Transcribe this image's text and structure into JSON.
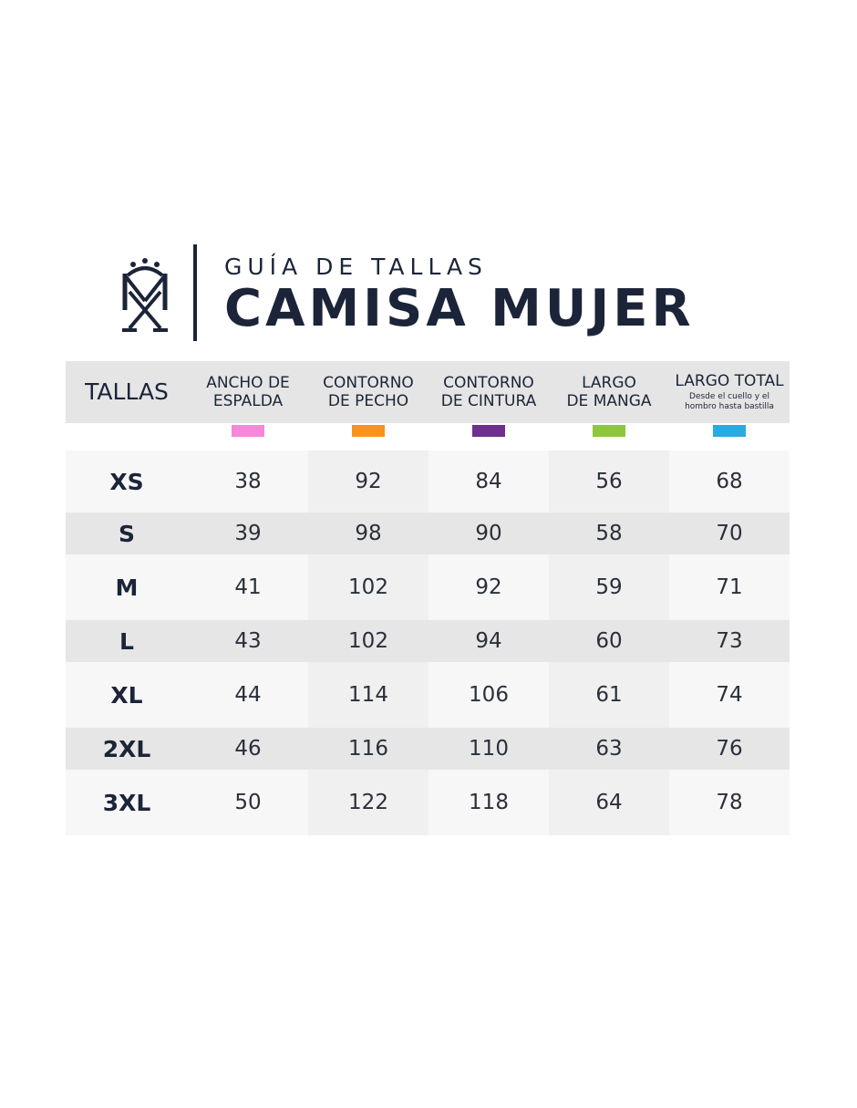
{
  "header": {
    "subtitle": "GUÍA DE TALLAS",
    "title": "CAMISA MUJER",
    "logo_icon": "monogram-crest-icon"
  },
  "table": {
    "columns": [
      {
        "line1": "TALLAS",
        "line2": "",
        "note1": "",
        "note2": "",
        "swatch": ""
      },
      {
        "line1": "ANCHO DE",
        "line2": "ESPALDA",
        "note1": "",
        "note2": "",
        "swatch": "#f389d8"
      },
      {
        "line1": "CONTORNO",
        "line2": "DE PECHO",
        "note1": "",
        "note2": "",
        "swatch": "#f7941d"
      },
      {
        "line1": "CONTORNO",
        "line2": "DE CINTURA",
        "note1": "",
        "note2": "",
        "swatch": "#6e2f8f"
      },
      {
        "line1": "LARGO",
        "line2": "DE MANGA",
        "note1": "",
        "note2": "",
        "swatch": "#8dc63f"
      },
      {
        "line1": "LARGO TOTAL",
        "line2": "",
        "note1": "Desde el cuello y el",
        "note2": "hombro hasta bastilla",
        "swatch": "#29abe2"
      }
    ],
    "rows": [
      [
        "XS",
        "38",
        "92",
        "84",
        "56",
        "68"
      ],
      [
        "S",
        "39",
        "98",
        "90",
        "58",
        "70"
      ],
      [
        "M",
        "41",
        "102",
        "92",
        "59",
        "71"
      ],
      [
        "L",
        "43",
        "102",
        "94",
        "60",
        "73"
      ],
      [
        "XL",
        "44",
        "114",
        "106",
        "61",
        "74"
      ],
      [
        "2XL",
        "46",
        "116",
        "110",
        "63",
        "76"
      ],
      [
        "3XL",
        "50",
        "122",
        "118",
        "64",
        "78"
      ]
    ]
  }
}
